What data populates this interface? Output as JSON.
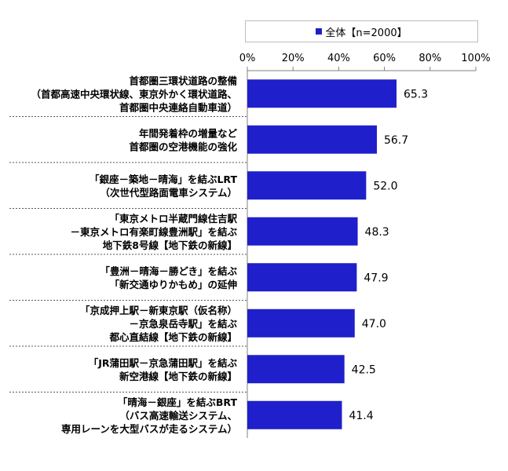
{
  "chart_data": {
    "type": "bar",
    "orientation": "horizontal",
    "xlim": [
      0,
      100
    ],
    "tick_values": [
      0,
      20,
      40,
      60,
      80,
      100
    ],
    "tick_labels": [
      "0%",
      "20%",
      "40%",
      "60%",
      "80%",
      "100%"
    ],
    "categories": [
      [
        "首都圏三環状道路の整備",
        "（首都高速中央環状線、東京外かく環状道路、",
        "首都圏中央連絡自動車道）"
      ],
      [
        "年間発着枠の増量など",
        "首都圏の空港機能の強化"
      ],
      [
        "「銀座－築地－晴海」を結ぶLRT",
        "（次世代型路面電車システム）"
      ],
      [
        "「東京メトロ半蔵門線住吉駅",
        "－東京メトロ有楽町線豊洲駅」を結ぶ",
        "地下鉄8号線【地下鉄の新線】"
      ],
      [
        "「豊洲－晴海－勝どき」を結ぶ",
        "「新交通ゆりかもめ」の延伸"
      ],
      [
        "「京成押上駅－新東京駅（仮名称）",
        "－京急泉岳寺駅」を結ぶ",
        "都心直結線【地下鉄の新線】"
      ],
      [
        "「JR蒲田駅－京急蒲田駅」を結ぶ",
        "新空港線【地下鉄の新線】"
      ],
      [
        "「晴海－銀座」を結ぶBRT",
        "（バス高速輸送システム、",
        "専用レーンを大型バスが走るシステム）"
      ]
    ],
    "series": [
      {
        "name": "全体【n=2000】",
        "color": "#1f1fcc",
        "values": [
          65.3,
          56.7,
          52.0,
          48.3,
          47.9,
          47.0,
          42.5,
          41.4
        ],
        "value_labels": [
          "65.3",
          "56.7",
          "52.0",
          "48.3",
          "47.9",
          "47.0",
          "42.5",
          "41.4"
        ]
      }
    ],
    "legend": "top-right",
    "grid": false
  }
}
